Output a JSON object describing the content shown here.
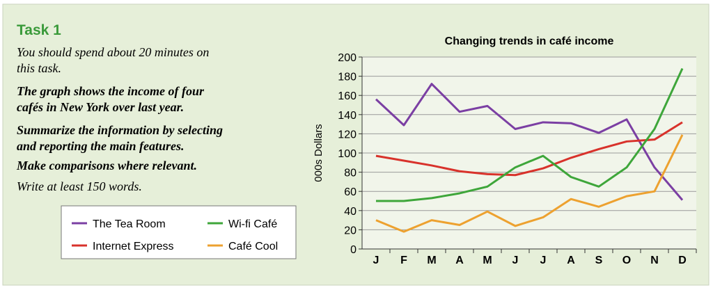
{
  "task": {
    "heading": "Task 1",
    "intro": [
      "You should spend about 20 minutes on",
      "this task."
    ],
    "prompt": [
      "The graph shows the income of four",
      "cafés in New York over last year.",
      "Summarize the information by selecting",
      "and reporting the main features.",
      "Make comparisons where relevant."
    ],
    "instruction": "Write at least 150 words."
  },
  "chart_data": {
    "type": "line",
    "title": "Changing trends in café income",
    "y_label": "000s Dollars",
    "categories": [
      "J",
      "F",
      "M",
      "A",
      "M",
      "J",
      "J",
      "A",
      "S",
      "O",
      "N",
      "D"
    ],
    "series": [
      {
        "name": "The Tea Room",
        "color": "#7b3fa3",
        "values": [
          156,
          129,
          172,
          143,
          149,
          125,
          132,
          131,
          121,
          135,
          85,
          51
        ]
      },
      {
        "name": "Internet Express",
        "color": "#d8322b",
        "values": [
          97,
          92,
          87,
          81,
          78,
          77,
          84,
          95,
          104,
          112,
          114,
          132
        ]
      },
      {
        "name": "Wi-fi Café",
        "color": "#3ea63a",
        "values": [
          50,
          50,
          53,
          58,
          65,
          85,
          97,
          75,
          65,
          85,
          125,
          188
        ]
      },
      {
        "name": "Café Cool",
        "color": "#eda12f",
        "values": [
          30,
          18,
          30,
          25,
          39,
          24,
          33,
          52,
          44,
          55,
          60,
          119
        ]
      }
    ],
    "ylim": [
      0,
      200
    ],
    "yticks": [
      0,
      20,
      40,
      60,
      80,
      100,
      120,
      140,
      160,
      180,
      200
    ],
    "grid": true
  }
}
